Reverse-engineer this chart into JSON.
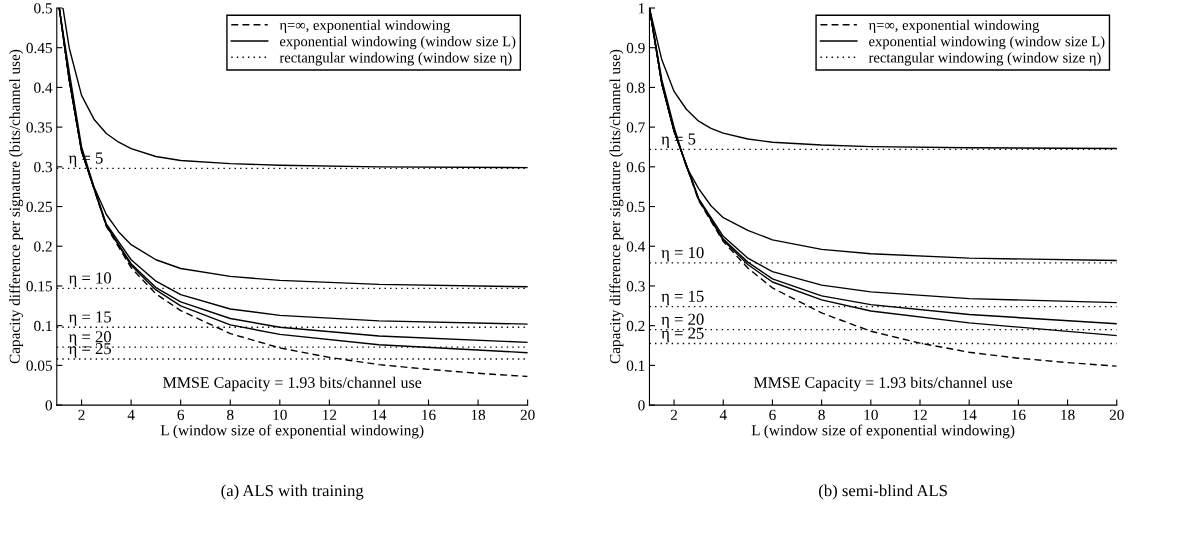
{
  "chart_data": [
    {
      "type": "line",
      "title": "(a) ALS with training",
      "xlabel": "L (window size of exponential windowing)",
      "ylabel": "Capacity difference per signature (bits/channel use)",
      "xlim": [
        1,
        20
      ],
      "xticks": [
        2,
        4,
        6,
        8,
        10,
        12,
        14,
        16,
        18,
        20
      ],
      "ylim": [
        0,
        0.5
      ],
      "yticks": [
        0,
        0.05,
        0.1,
        0.15,
        0.2,
        0.25,
        0.3,
        0.35,
        0.4,
        0.45,
        0.5
      ],
      "grid": false,
      "legend": "top right",
      "marker": "none",
      "series": [
        {
          "name": "η=∞, exponential windowing",
          "color": "#000000",
          "line_style": "dashed",
          "x": [
            1.1,
            1.5,
            2,
            3,
            4,
            5,
            6,
            8,
            10,
            12,
            14,
            16,
            18,
            20
          ],
          "values": [
            0.5,
            0.41,
            0.32,
            0.225,
            0.173,
            0.14,
            0.119,
            0.09,
            0.072,
            0.06,
            0.051,
            0.045,
            0.04,
            0.036
          ]
        },
        {
          "name": "exponential windowing (window size L)",
          "color": "#000000",
          "line_style": "solid",
          "x": [
            1.25,
            1.5,
            2,
            2.5,
            3,
            3.5,
            4,
            5,
            6,
            8,
            10,
            14,
            20
          ],
          "values": [
            0.5,
            0.45,
            0.39,
            0.36,
            0.342,
            0.331,
            0.323,
            0.313,
            0.308,
            0.304,
            0.302,
            0.3,
            0.299
          ]
        },
        {
          "color": "#000000",
          "line_style": "solid",
          "x": [
            1.1,
            1.5,
            2,
            2.5,
            3,
            3.5,
            4,
            5,
            6,
            8,
            10,
            14,
            20
          ],
          "values": [
            0.5,
            0.42,
            0.325,
            0.275,
            0.24,
            0.218,
            0.202,
            0.183,
            0.172,
            0.162,
            0.157,
            0.152,
            0.149
          ]
        },
        {
          "color": "#000000",
          "line_style": "solid",
          "x": [
            1.1,
            1.5,
            2,
            3,
            4,
            5,
            6,
            8,
            10,
            14,
            20
          ],
          "values": [
            0.5,
            0.41,
            0.32,
            0.228,
            0.183,
            0.156,
            0.139,
            0.121,
            0.113,
            0.106,
            0.102
          ]
        },
        {
          "color": "#000000",
          "line_style": "solid",
          "x": [
            1.1,
            1.5,
            2,
            3,
            4,
            5,
            6,
            8,
            10,
            14,
            20
          ],
          "values": [
            0.5,
            0.41,
            0.32,
            0.226,
            0.178,
            0.148,
            0.13,
            0.109,
            0.098,
            0.087,
            0.079
          ]
        },
        {
          "color": "#000000",
          "line_style": "solid",
          "x": [
            1.1,
            1.5,
            2,
            3,
            4,
            5,
            6,
            8,
            10,
            14,
            20
          ],
          "values": [
            0.5,
            0.41,
            0.32,
            0.226,
            0.176,
            0.145,
            0.125,
            0.101,
            0.089,
            0.076,
            0.066
          ]
        },
        {
          "name": "rectangular windowing (window size η)",
          "color": "#000000",
          "line_style": "dotted",
          "x": [
            1,
            20
          ],
          "values": [
            0.298,
            0.298
          ]
        },
        {
          "color": "#000000",
          "line_style": "dotted",
          "x": [
            1,
            20
          ],
          "values": [
            0.147,
            0.147
          ]
        },
        {
          "color": "#000000",
          "line_style": "dotted",
          "x": [
            1,
            20
          ],
          "values": [
            0.098,
            0.098
          ]
        },
        {
          "color": "#000000",
          "line_style": "dotted",
          "x": [
            1,
            20
          ],
          "values": [
            0.073,
            0.073
          ]
        },
        {
          "color": "#000000",
          "line_style": "dotted",
          "x": [
            1,
            20
          ],
          "values": [
            0.058,
            0.058
          ]
        }
      ],
      "annotations": [
        "MMSE Capacity = 1.93 bits/channel use",
        {
          "text": "η = 5",
          "y": 0.298
        },
        {
          "text": "η = 10",
          "y": 0.147
        },
        {
          "text": "η = 15",
          "y": 0.098
        },
        {
          "text": "η = 20",
          "y": 0.073
        },
        {
          "text": "η = 25",
          "y": 0.058
        }
      ]
    },
    {
      "type": "line",
      "title": "(b) semi-blind ALS",
      "xlabel": "L (window size of exponential windowing)",
      "ylabel": "Capacity difference per signature (bits/channel use)",
      "xlim": [
        1,
        20
      ],
      "xticks": [
        2,
        4,
        6,
        8,
        10,
        12,
        14,
        16,
        18,
        20
      ],
      "ylim": [
        0,
        1
      ],
      "yticks": [
        0,
        0.1,
        0.2,
        0.3,
        0.4,
        0.5,
        0.6,
        0.7,
        0.8,
        0.9,
        1
      ],
      "grid": false,
      "legend": "top right",
      "marker": "none",
      "series": [
        {
          "name": "η=∞, exponential windowing",
          "color": "#000000",
          "line_style": "dashed",
          "x": [
            1,
            1.5,
            2,
            3,
            4,
            5,
            6,
            8,
            10,
            12,
            14,
            16,
            18,
            20
          ],
          "values": [
            1.0,
            0.81,
            0.69,
            0.515,
            0.412,
            0.345,
            0.295,
            0.232,
            0.186,
            0.156,
            0.133,
            0.118,
            0.107,
            0.098
          ]
        },
        {
          "name": "exponential windowing (window size L)",
          "color": "#000000",
          "line_style": "solid",
          "x": [
            1,
            1.5,
            2,
            2.5,
            3,
            3.5,
            4,
            5,
            6,
            8,
            10,
            14,
            20
          ],
          "values": [
            1.0,
            0.87,
            0.79,
            0.745,
            0.715,
            0.697,
            0.685,
            0.67,
            0.662,
            0.655,
            0.651,
            0.648,
            0.646
          ]
        },
        {
          "color": "#000000",
          "line_style": "solid",
          "x": [
            1,
            1.5,
            2,
            2.5,
            3,
            3.5,
            4,
            5,
            6,
            8,
            10,
            14,
            20
          ],
          "values": [
            1.0,
            0.82,
            0.7,
            0.6,
            0.545,
            0.502,
            0.472,
            0.44,
            0.416,
            0.392,
            0.381,
            0.37,
            0.364
          ]
        },
        {
          "color": "#000000",
          "line_style": "solid",
          "x": [
            1,
            1.5,
            2,
            3,
            4,
            5,
            6,
            8,
            10,
            14,
            20
          ],
          "values": [
            1.0,
            0.81,
            0.69,
            0.52,
            0.425,
            0.37,
            0.336,
            0.302,
            0.285,
            0.268,
            0.258
          ]
        },
        {
          "color": "#000000",
          "line_style": "solid",
          "x": [
            1,
            1.5,
            2,
            3,
            4,
            5,
            6,
            8,
            10,
            14,
            20
          ],
          "values": [
            1.0,
            0.81,
            0.69,
            0.518,
            0.418,
            0.36,
            0.318,
            0.275,
            0.253,
            0.228,
            0.205
          ]
        },
        {
          "color": "#000000",
          "line_style": "solid",
          "x": [
            1,
            1.5,
            2,
            3,
            4,
            5,
            6,
            8,
            10,
            14,
            20
          ],
          "values": [
            1.0,
            0.81,
            0.69,
            0.518,
            0.415,
            0.354,
            0.31,
            0.265,
            0.237,
            0.207,
            0.175
          ]
        },
        {
          "name": "rectangular windowing (window size η)",
          "color": "#000000",
          "line_style": "dotted",
          "x": [
            1,
            20
          ],
          "values": [
            0.644,
            0.644
          ]
        },
        {
          "color": "#000000",
          "line_style": "dotted",
          "x": [
            1,
            20
          ],
          "values": [
            0.358,
            0.358
          ]
        },
        {
          "color": "#000000",
          "line_style": "dotted",
          "x": [
            1,
            20
          ],
          "values": [
            0.248,
            0.248
          ]
        },
        {
          "color": "#000000",
          "line_style": "dotted",
          "x": [
            1,
            20
          ],
          "values": [
            0.19,
            0.19
          ]
        },
        {
          "color": "#000000",
          "line_style": "dotted",
          "x": [
            1,
            20
          ],
          "values": [
            0.155,
            0.155
          ]
        }
      ],
      "annotations": [
        "MMSE Capacity = 1.93 bits/channel use",
        {
          "text": "η = 5",
          "y": 0.644
        },
        {
          "text": "η = 10",
          "y": 0.358
        },
        {
          "text": "η = 15",
          "y": 0.248
        },
        {
          "text": "η = 20",
          "y": 0.19
        },
        {
          "text": "η = 25",
          "y": 0.155
        }
      ]
    }
  ]
}
